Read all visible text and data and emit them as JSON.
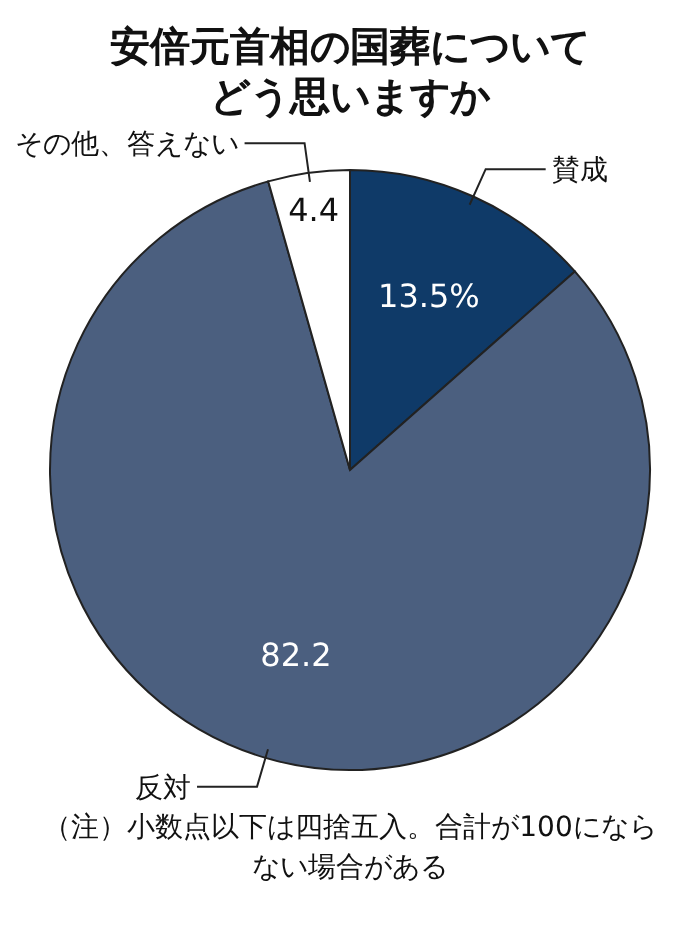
{
  "chart_data": {
    "type": "pie",
    "title": "安倍元首相の国葬についてどう思いますか",
    "categories": [
      "賛成",
      "反対",
      "その他、答えない"
    ],
    "values": [
      13.5,
      82.2,
      4.4
    ],
    "colors": [
      "#0f3a68",
      "#4b5f7f",
      "#ffffff"
    ],
    "value_labels": [
      "13.5%",
      "82.2",
      "4.4"
    ],
    "annotations": [
      "（注）小数点以下は四捨五入。合計が100にならない場合がある"
    ]
  }
}
